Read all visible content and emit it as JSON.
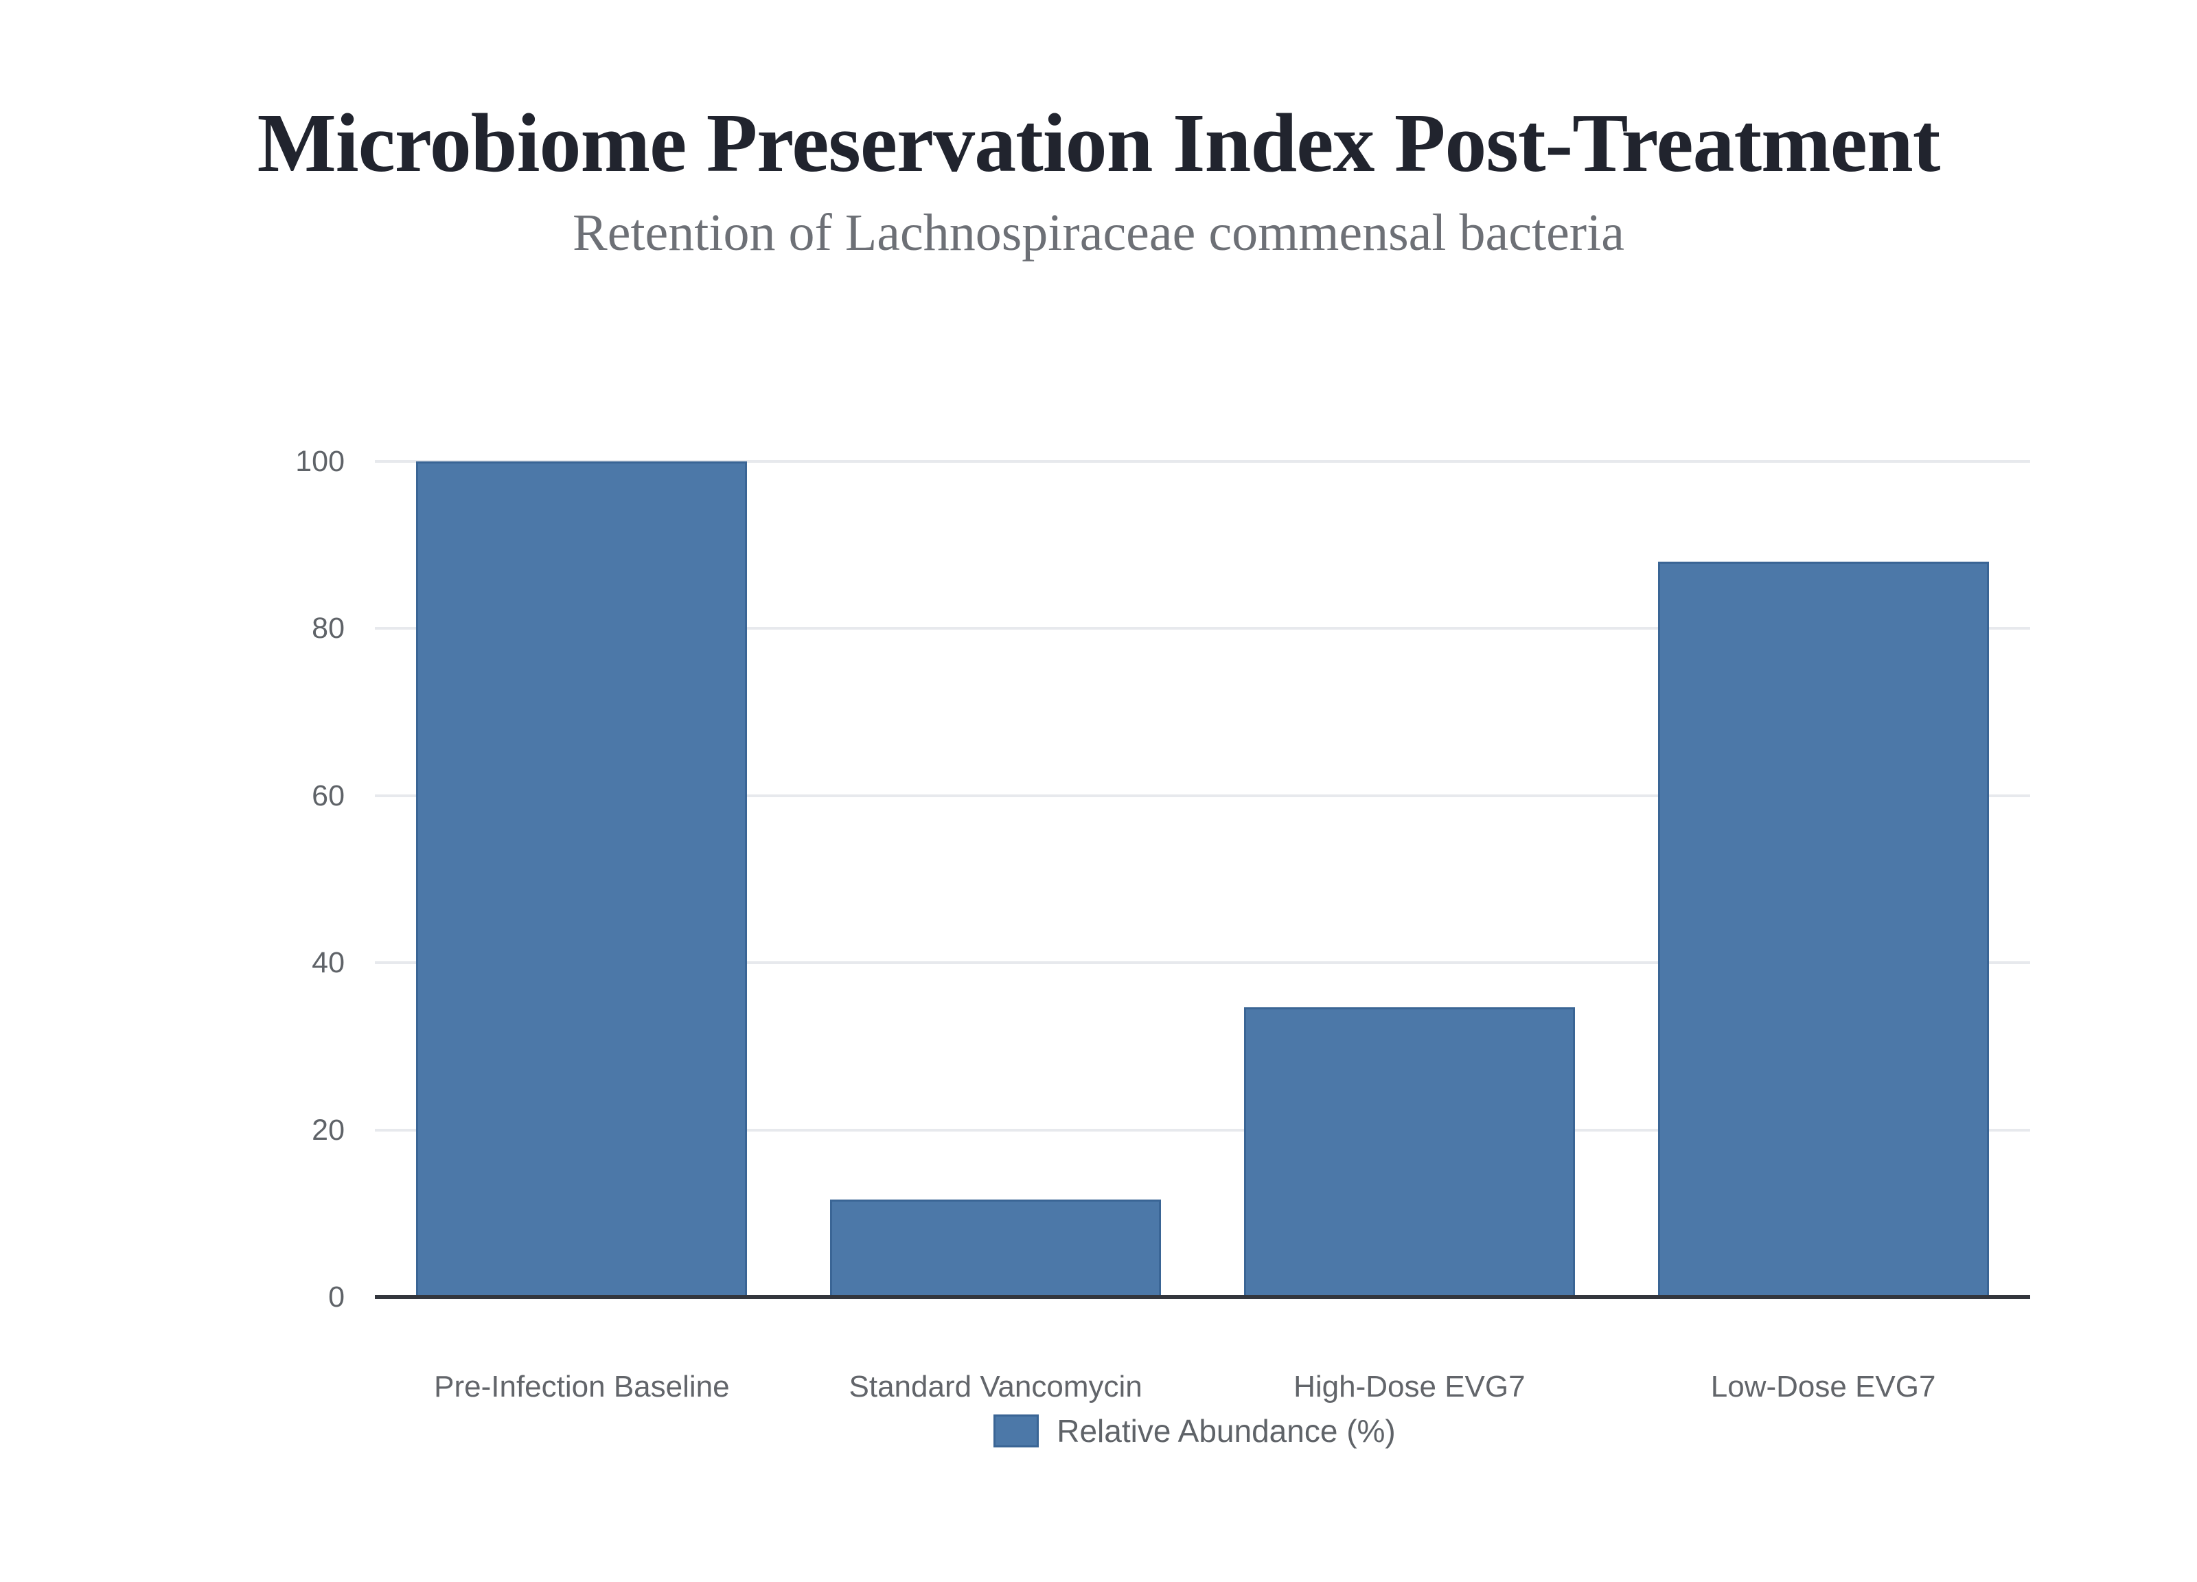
{
  "title": "Microbiome Preservation Index Post-Treatment",
  "subtitle": "Retention of Lachnospiraceae commensal bacteria",
  "chart_data": {
    "type": "bar",
    "categories": [
      "Pre-Infection Baseline",
      "Standard Vancomycin",
      "High-Dose EVG7",
      "Low-Dose EVG7"
    ],
    "values": [
      100,
      11.7,
      34.7,
      88
    ],
    "series": [
      {
        "name": "Relative Abundance (%)",
        "values": [
          100,
          11.7,
          34.7,
          88
        ]
      }
    ],
    "title": "Microbiome Preservation Index Post-Treatment",
    "subtitle": "Retention of Lachnospiraceae commensal bacteria",
    "xlabel": "",
    "ylabel": "",
    "ylim": [
      0,
      100
    ],
    "yticks": [
      0,
      20,
      40,
      60,
      80,
      100
    ],
    "grid": true,
    "legend_position": "bottom",
    "legend_label": "Relative Abundance (%)",
    "colors": {
      "bar_fill": "#4c78a8",
      "bar_stroke": "#3a6595",
      "gridline": "#e7e9ed",
      "axis_line": "#33363d",
      "tick_text": "#5f6368",
      "category_text": "#62656a",
      "title_text": "#21242e",
      "subtitle_text": "#6d7076",
      "background": "#ffffff"
    }
  }
}
